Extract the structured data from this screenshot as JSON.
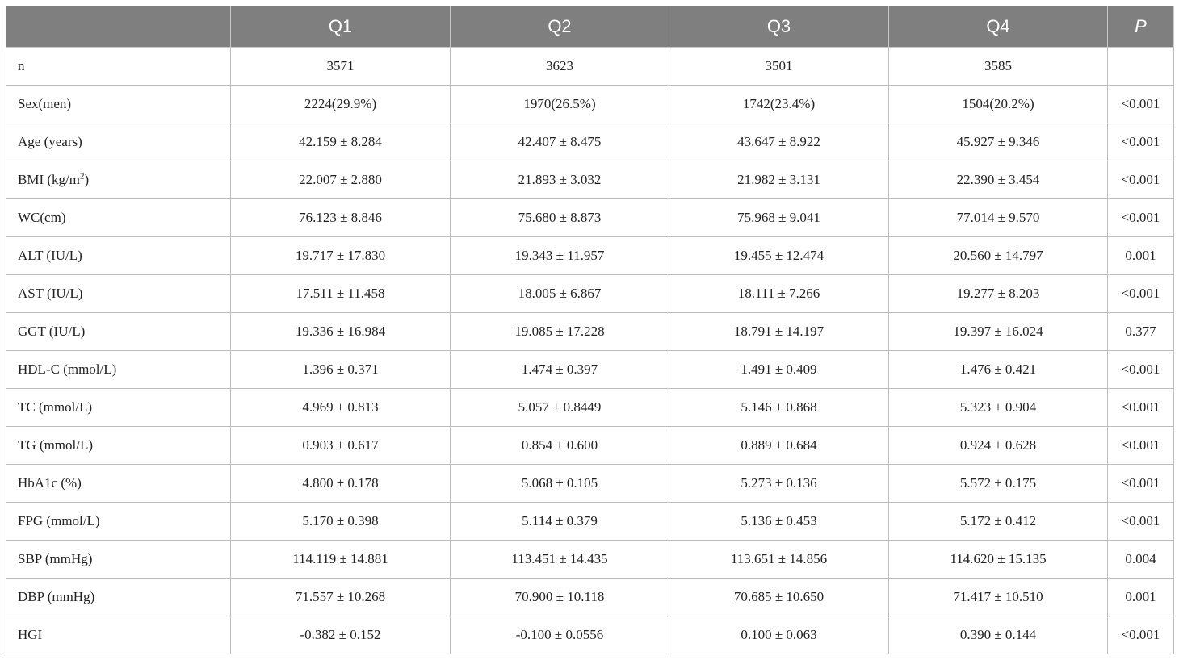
{
  "header": {
    "blank": "",
    "q1": "Q1",
    "q2": "Q2",
    "q3": "Q3",
    "q4": "Q4",
    "p": "P"
  },
  "rows": [
    {
      "label": "n",
      "q1": "3571",
      "q2": "3623",
      "q3": "3501",
      "q4": "3585",
      "p": ""
    },
    {
      "label": "Sex(men)",
      "q1": "2224(29.9%)",
      "q2": "1970(26.5%)",
      "q3": "1742(23.4%)",
      "q4": "1504(20.2%)",
      "p": "<0.001"
    },
    {
      "label": "Age (years)",
      "q1": "42.159 ± 8.284",
      "q2": "42.407 ± 8.475",
      "q3": "43.647 ± 8.922",
      "q4": "45.927 ± 9.346",
      "p": "<0.001"
    },
    {
      "label": "BMI (kg/m",
      "label_sup": "2",
      "label_suffix": ")",
      "q1": "22.007 ± 2.880",
      "q2": "21.893 ± 3.032",
      "q3": "21.982 ± 3.131",
      "q4": "22.390 ± 3.454",
      "p": "<0.001"
    },
    {
      "label": "WC(cm)",
      "q1": "76.123 ± 8.846",
      "q2": "75.680 ± 8.873",
      "q3": "75.968 ± 9.041",
      "q4": "77.014 ± 9.570",
      "p": "<0.001"
    },
    {
      "label": "ALT (IU/L)",
      "q1": "19.717 ± 17.830",
      "q2": "19.343 ± 11.957",
      "q3": "19.455 ± 12.474",
      "q4": "20.560 ± 14.797",
      "p": "0.001"
    },
    {
      "label": "AST (IU/L)",
      "q1": "17.511 ± 11.458",
      "q2": "18.005 ± 6.867",
      "q3": "18.111 ± 7.266",
      "q4": "19.277 ± 8.203",
      "p": "<0.001"
    },
    {
      "label": "GGT (IU/L)",
      "q1": "19.336 ± 16.984",
      "q2": "19.085 ± 17.228",
      "q3": "18.791 ± 14.197",
      "q4": "19.397 ± 16.024",
      "p": "0.377"
    },
    {
      "label": "HDL-C (mmol/L)",
      "q1": "1.396 ± 0.371",
      "q2": "1.474 ± 0.397",
      "q3": "1.491 ± 0.409",
      "q4": "1.476 ± 0.421",
      "p": "<0.001"
    },
    {
      "label": "TC (mmol/L)",
      "q1": "4.969 ± 0.813",
      "q2": "5.057 ± 0.8449",
      "q3": "5.146 ± 0.868",
      "q4": "5.323 ± 0.904",
      "p": "<0.001"
    },
    {
      "label": "TG (mmol/L)",
      "q1": "0.903 ± 0.617",
      "q2": "0.854 ± 0.600",
      "q3": "0.889 ± 0.684",
      "q4": "0.924 ± 0.628",
      "p": "<0.001"
    },
    {
      "label": "HbA1c (%)",
      "q1": "4.800 ± 0.178",
      "q2": "5.068 ± 0.105",
      "q3": "5.273 ± 0.136",
      "q4": "5.572 ± 0.175",
      "p": "<0.001"
    },
    {
      "label": "FPG (mmol/L)",
      "q1": "5.170 ± 0.398",
      "q2": "5.114 ± 0.379",
      "q3": "5.136 ± 0.453",
      "q4": "5.172 ± 0.412",
      "p": "<0.001"
    },
    {
      "label": "SBP (mmHg)",
      "q1": "114.119 ± 14.881",
      "q2": "113.451 ± 14.435",
      "q3": "113.651 ± 14.856",
      "q4": "114.620 ± 15.135",
      "p": "0.004"
    },
    {
      "label": "DBP (mmHg)",
      "q1": "71.557 ± 10.268",
      "q2": "70.900 ± 10.118",
      "q3": "70.685 ± 10.650",
      "q4": "71.417 ± 10.510",
      "p": "0.001"
    },
    {
      "label": "HGI",
      "q1": "-0.382 ± 0.152",
      "q2": "-0.100 ± 0.0556",
      "q3": "0.100 ± 0.063",
      "q4": "0.390 ± 0.144",
      "p": "<0.001"
    }
  ]
}
